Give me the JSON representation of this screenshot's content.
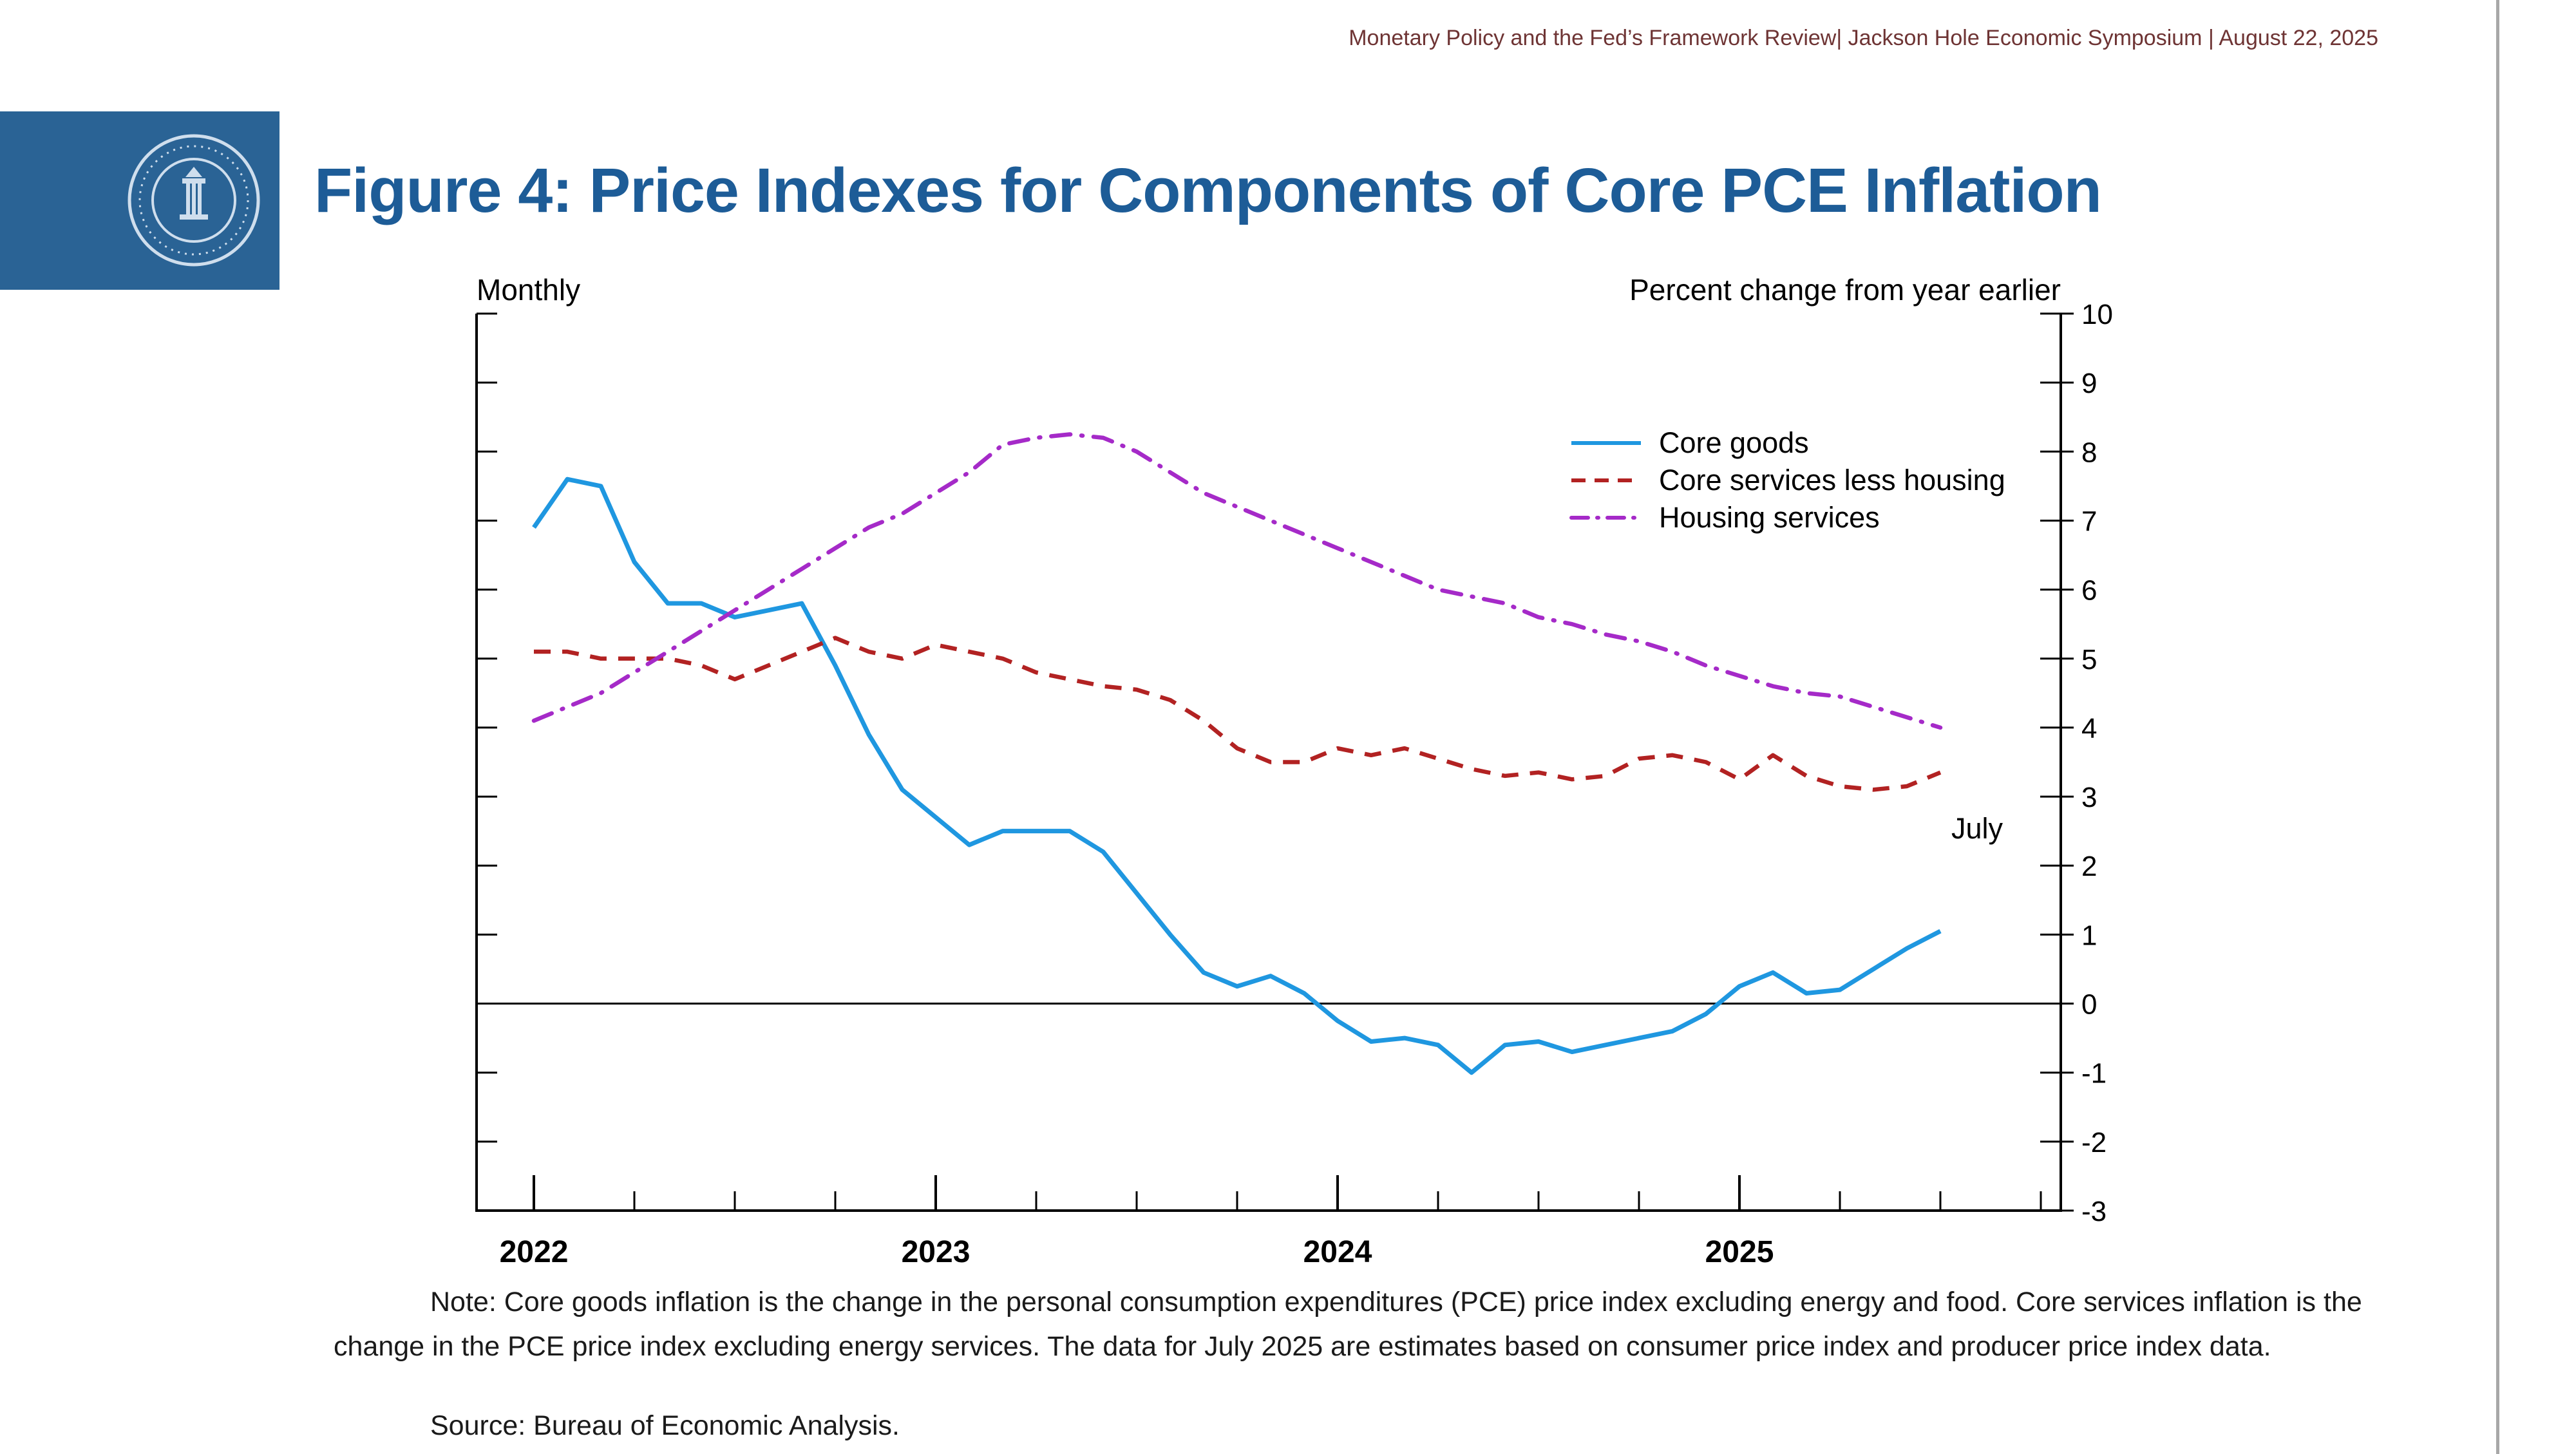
{
  "header": {
    "text": "Monetary Policy and the Fed’s Framework Review| Jackson Hole Economic Symposium | August 22, 2025"
  },
  "title": "Figure 4: Price Indexes for Components of Core PCE Inflation",
  "branding": {
    "logo": "federal-reserve-seal",
    "logo_background_color": "#2a6395",
    "title_color": "#1d5c97"
  },
  "chart_data": {
    "type": "line",
    "frequency": "monthly",
    "top_left_label": "Monthly",
    "top_right_label": "Percent change from year earlier",
    "x_start": "2022-01",
    "x_end": "2025-07",
    "x_year_labels": [
      "2022",
      "2023",
      "2024",
      "2025"
    ],
    "ylim": [
      -3,
      10
    ],
    "yticks": [
      10,
      9,
      8,
      7,
      6,
      5,
      4,
      3,
      2,
      1,
      0,
      -1,
      -2,
      -3
    ],
    "grid": false,
    "legend_position": "top-right-inside",
    "annotation": "July",
    "zero_line": true,
    "series": [
      {
        "name": "Core goods",
        "color": "#1f97e0",
        "style": "solid",
        "values": [
          6.9,
          7.6,
          7.5,
          6.4,
          5.8,
          5.8,
          5.6,
          5.7,
          5.8,
          4.9,
          3.9,
          3.1,
          2.7,
          2.3,
          2.5,
          2.5,
          2.5,
          2.2,
          1.6,
          1.0,
          0.45,
          0.25,
          0.4,
          0.15,
          -0.25,
          -0.55,
          -0.5,
          -0.6,
          -1.0,
          -0.6,
          -0.55,
          -0.7,
          -0.6,
          -0.5,
          -0.4,
          -0.15,
          0.25,
          0.45,
          0.15,
          0.2,
          0.5,
          0.8,
          1.05
        ]
      },
      {
        "name": "Core services less housing",
        "color": "#b22222",
        "style": "dashed",
        "values": [
          5.1,
          5.1,
          5.0,
          5.0,
          5.0,
          4.9,
          4.7,
          4.9,
          5.1,
          5.3,
          5.1,
          5.0,
          5.2,
          5.1,
          5.0,
          4.8,
          4.7,
          4.6,
          4.55,
          4.4,
          4.1,
          3.7,
          3.5,
          3.5,
          3.7,
          3.6,
          3.7,
          3.55,
          3.4,
          3.3,
          3.35,
          3.25,
          3.3,
          3.55,
          3.6,
          3.5,
          3.25,
          3.6,
          3.3,
          3.15,
          3.1,
          3.15,
          3.35
        ]
      },
      {
        "name": "Housing services",
        "color": "#a52ac8",
        "style": "dashdot",
        "values": [
          4.1,
          4.3,
          4.5,
          4.8,
          5.1,
          5.4,
          5.7,
          6.0,
          6.3,
          6.6,
          6.9,
          7.1,
          7.4,
          7.7,
          8.1,
          8.2,
          8.25,
          8.2,
          8.0,
          7.7,
          7.4,
          7.2,
          7.0,
          6.8,
          6.6,
          6.4,
          6.2,
          6.0,
          5.9,
          5.8,
          5.6,
          5.5,
          5.35,
          5.25,
          5.1,
          4.9,
          4.75,
          4.6,
          4.5,
          4.45,
          4.3,
          4.15,
          4.0
        ]
      }
    ]
  },
  "note": {
    "text": "Note: Core goods inflation is the change in the personal consumption expenditures (PCE) price index excluding energy and food. Core services inflation is the change in the PCE price index excluding energy services. The data for July 2025 are estimates based on consumer price index and producer price index data."
  },
  "source": {
    "text": "Source: Bureau of Economic Analysis."
  }
}
